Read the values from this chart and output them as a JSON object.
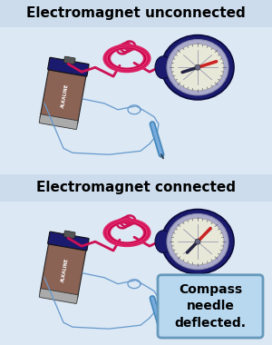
{
  "title_top": "Electromagnet unconnected",
  "title_bottom": "Electromagnet connected",
  "annotation": "Compass\nneedle\ndeflected.",
  "panel_bg": "#ffffff",
  "header_bg": "#ccdcec",
  "fig_bg": "#dce8f4",
  "title_fontsize": 11,
  "annotation_fontsize": 10,
  "annotation_bg": "#b8d8f0",
  "annotation_border": "#6699bb",
  "battery_body": "#8B6355",
  "battery_top": "#1a1a6e",
  "battery_bottom": "#aaaaaa",
  "compass_outer": "#1a1a6e",
  "compass_face": "#e8e8d8",
  "compass_ring": "#aaaacc",
  "coil_color": "#cc1155",
  "wire_color": "#6699cc",
  "needle_red": "#cc2222",
  "needle_dark": "#222244"
}
